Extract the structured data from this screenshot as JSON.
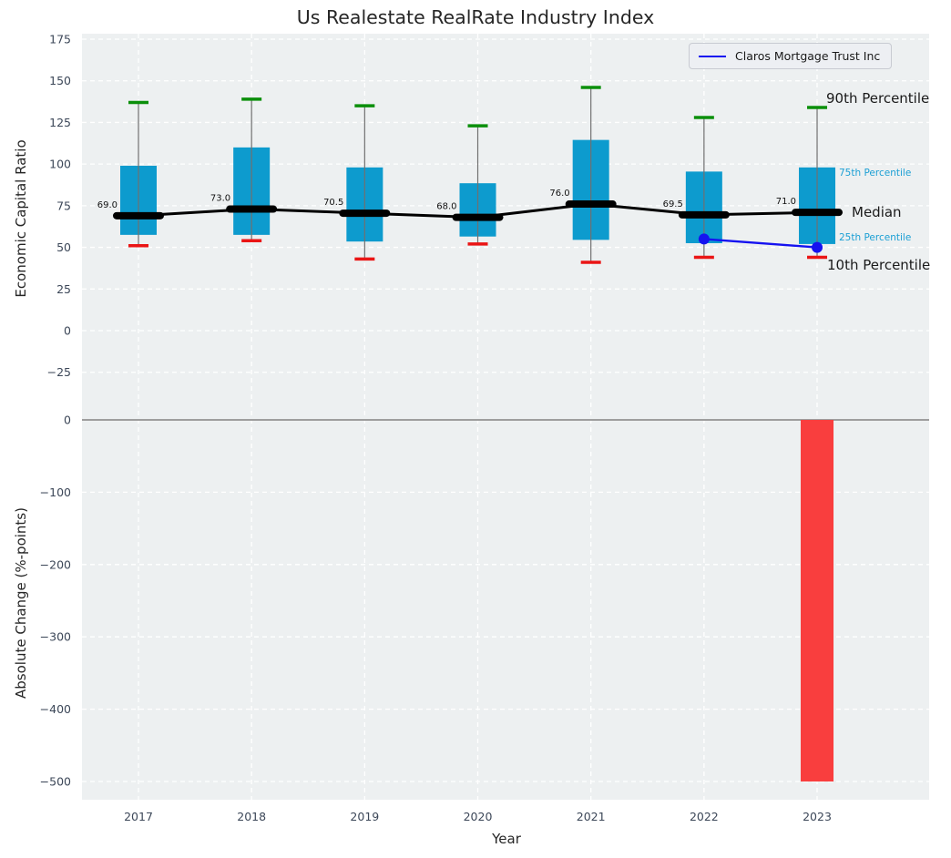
{
  "title": "Us Realestate RealRate Industry Index",
  "xlabel": "Year",
  "legend": {
    "label": "Claros Mortgage Trust Inc"
  },
  "top_axis": {
    "ylabel": "Economic Capital Ratio",
    "ytick_labels": [
      "175",
      "150",
      "125",
      "100",
      "75",
      "50",
      "25",
      "0",
      "−25"
    ],
    "ytick_values": [
      175,
      150,
      125,
      100,
      75,
      50,
      25,
      0,
      -25
    ]
  },
  "bottom_axis": {
    "ylabel": "Absolute Change (%-points)",
    "ytick_labels": [
      "0",
      "−100",
      "−200",
      "−300",
      "−400",
      "−500"
    ],
    "ytick_values": [
      0,
      -100,
      -200,
      -300,
      -400,
      -500
    ]
  },
  "annotations": {
    "p90": "90th Percentile",
    "p75": "75th Percentile",
    "median": "Median",
    "p25": "25th Percentile",
    "p10": "10th Percentile"
  },
  "chart_data": [
    {
      "type": "boxplot",
      "axis": "top",
      "title": "Us Realestate RealRate Industry Index",
      "xlabel": "Year",
      "ylabel": "Economic Capital Ratio",
      "categories": [
        "2017",
        "2018",
        "2019",
        "2020",
        "2021",
        "2022",
        "2023"
      ],
      "series": {
        "p10": [
          51,
          54,
          43,
          52,
          41,
          44,
          44
        ],
        "p25": [
          57.5,
          57.5,
          53.5,
          56.5,
          54.5,
          52.5,
          52
        ],
        "median": [
          69.0,
          73.0,
          70.5,
          68.0,
          76.0,
          69.5,
          71.0
        ],
        "p75": [
          99,
          110,
          98,
          88.5,
          114.5,
          95.5,
          98
        ],
        "p90": [
          137,
          139,
          135,
          123,
          146,
          128,
          134
        ]
      },
      "median_labels": [
        "69.0",
        "73.0",
        "70.5",
        "68.0",
        "76.0",
        "69.5",
        "71.0"
      ],
      "company_line": {
        "name": "Claros Mortgage Trust Inc",
        "categories": [
          "2022",
          "2023"
        ],
        "values": [
          55,
          50
        ]
      },
      "ylim": [
        -44,
        178
      ],
      "grid": true,
      "legend_position": "upper right"
    },
    {
      "type": "bar",
      "axis": "bottom",
      "ylabel": "Absolute Change (%-points)",
      "categories": [
        "2017",
        "2018",
        "2019",
        "2020",
        "2021",
        "2022",
        "2023"
      ],
      "values": [
        null,
        null,
        null,
        null,
        null,
        null,
        -500
      ],
      "ylim": [
        -536,
        22
      ],
      "grid": true
    }
  ],
  "colors": {
    "box_fill": "#0d9bce",
    "whisker": "#707070",
    "cap_top": "#0b8f0b",
    "cap_bottom": "#ea1515",
    "median": "#000000",
    "company_line": "#1512f0",
    "bar_negative": "#f93e3e",
    "plot_bg": "#edf0f1",
    "grid": "#ffffff",
    "zero_line": "#9e9e9e",
    "tick_label": "#3c4758",
    "text": "#262626",
    "percentile_label": "#1b9fd4"
  }
}
